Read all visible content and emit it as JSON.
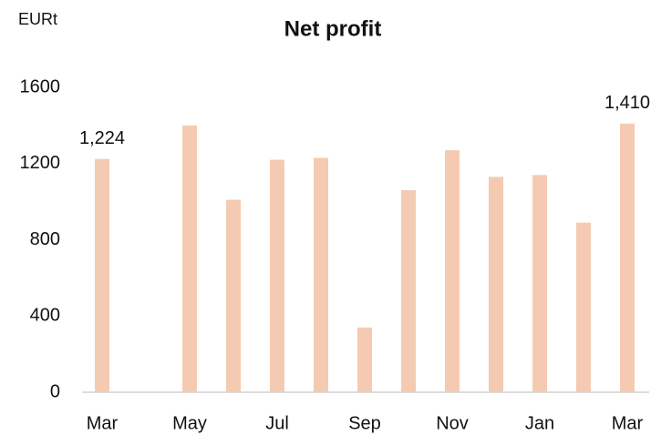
{
  "chart_data": {
    "type": "bar",
    "title": "Net profit",
    "y_axis_label": "EURt",
    "categories": [
      "Mar",
      null,
      "May",
      null,
      "Jul",
      null,
      "Sep",
      null,
      "Nov",
      null,
      "Jan",
      null,
      "Mar"
    ],
    "values": [
      1224,
      0,
      1400,
      1010,
      1220,
      1230,
      340,
      1060,
      1270,
      1130,
      1140,
      890,
      1410
    ],
    "value_labels": [
      "1,224",
      null,
      null,
      null,
      null,
      null,
      null,
      null,
      null,
      null,
      null,
      null,
      "1,410"
    ],
    "color": "#f4cbb2",
    "ylim": [
      0,
      1600
    ],
    "yticks": [
      0,
      400,
      800,
      1200,
      1600
    ],
    "grid": false
  }
}
